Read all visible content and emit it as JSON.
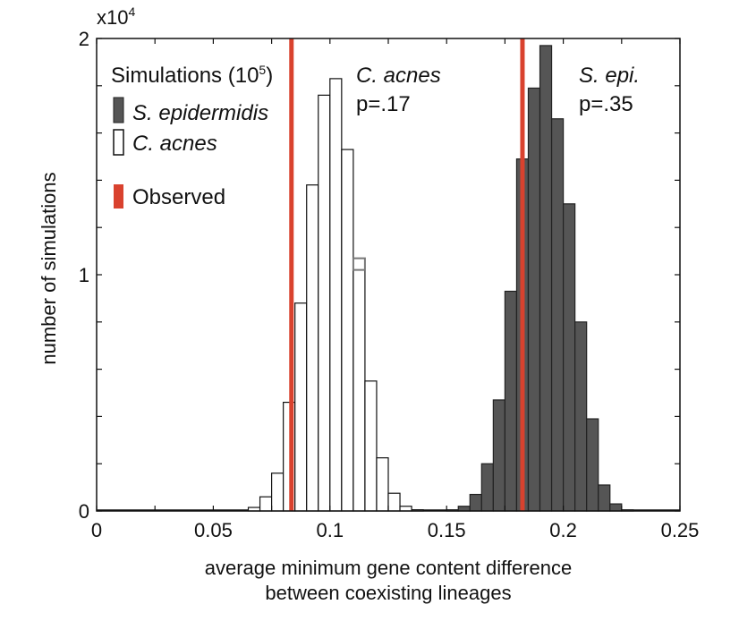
{
  "chart_data": {
    "type": "bar",
    "title": "",
    "xlabel_line1": "average minimum gene content difference",
    "xlabel_line2": "between coexisting lineages",
    "ylabel": "number of simulations",
    "y_multiplier": "x10",
    "y_multiplier_exp": "4",
    "xlim": [
      0,
      0.25
    ],
    "ylim": [
      0,
      2
    ],
    "x_ticks": [
      0,
      0.05,
      0.1,
      0.15,
      0.2,
      0.25
    ],
    "x_tick_labels": [
      "0",
      "0.05",
      "0.1",
      "0.15",
      "0.2",
      "0.25"
    ],
    "y_ticks": [
      0,
      1,
      2
    ],
    "y_tick_labels": [
      "0",
      "1",
      "2"
    ],
    "bin_width": 0.005,
    "series": [
      {
        "name": "C. acnes",
        "fill": "#ffffff",
        "stroke": "#111111",
        "bin_starts": [
          0.065,
          0.07,
          0.075,
          0.08,
          0.085,
          0.09,
          0.095,
          0.1,
          0.105,
          0.11,
          0.115,
          0.12,
          0.125,
          0.13,
          0.135
        ],
        "values": [
          0.015,
          0.06,
          0.16,
          0.46,
          0.88,
          1.38,
          1.76,
          1.83,
          1.53,
          1.04,
          0.55,
          0.225,
          0.075,
          0.02,
          0.005
        ]
      },
      {
        "name": "S. epidermidis",
        "fill": "#555555",
        "stroke": "#222222",
        "bin_starts": [
          0.15,
          0.155,
          0.16,
          0.165,
          0.17,
          0.175,
          0.18,
          0.185,
          0.19,
          0.195,
          0.2,
          0.205,
          0.21,
          0.215,
          0.22,
          0.225
        ],
        "values": [
          0.005,
          0.02,
          0.07,
          0.2,
          0.47,
          0.93,
          1.49,
          1.79,
          1.97,
          1.66,
          1.3,
          0.8,
          0.39,
          0.11,
          0.03,
          0.005
        ]
      }
    ],
    "observed_lines": [
      {
        "name": "C. acnes observed",
        "x": 0.0835,
        "color": "#d9422e"
      },
      {
        "name": "S. epidermidis observed",
        "x": 0.1825,
        "color": "#d9422e"
      }
    ],
    "marker_point": {
      "x": 0.1125,
      "y": 1.045
    },
    "legend": {
      "title_prefix": "Simulations (10",
      "title_exp": "5",
      "title_suffix": ")",
      "items": [
        {
          "label": "S. epidermidis",
          "swatch": "#555555",
          "italic": true
        },
        {
          "label": "C. acnes",
          "swatch": "#ffffff",
          "italic": true
        },
        {
          "label": "Observed",
          "swatch": "#d9422e",
          "italic": false
        }
      ]
    },
    "annotations": [
      {
        "name": "c-acnes-annotation",
        "species": "C. acnes",
        "pvalue": "p=.17"
      },
      {
        "name": "s-epi-annotation",
        "species": "S. epi.",
        "pvalue": "p=.35"
      }
    ]
  }
}
